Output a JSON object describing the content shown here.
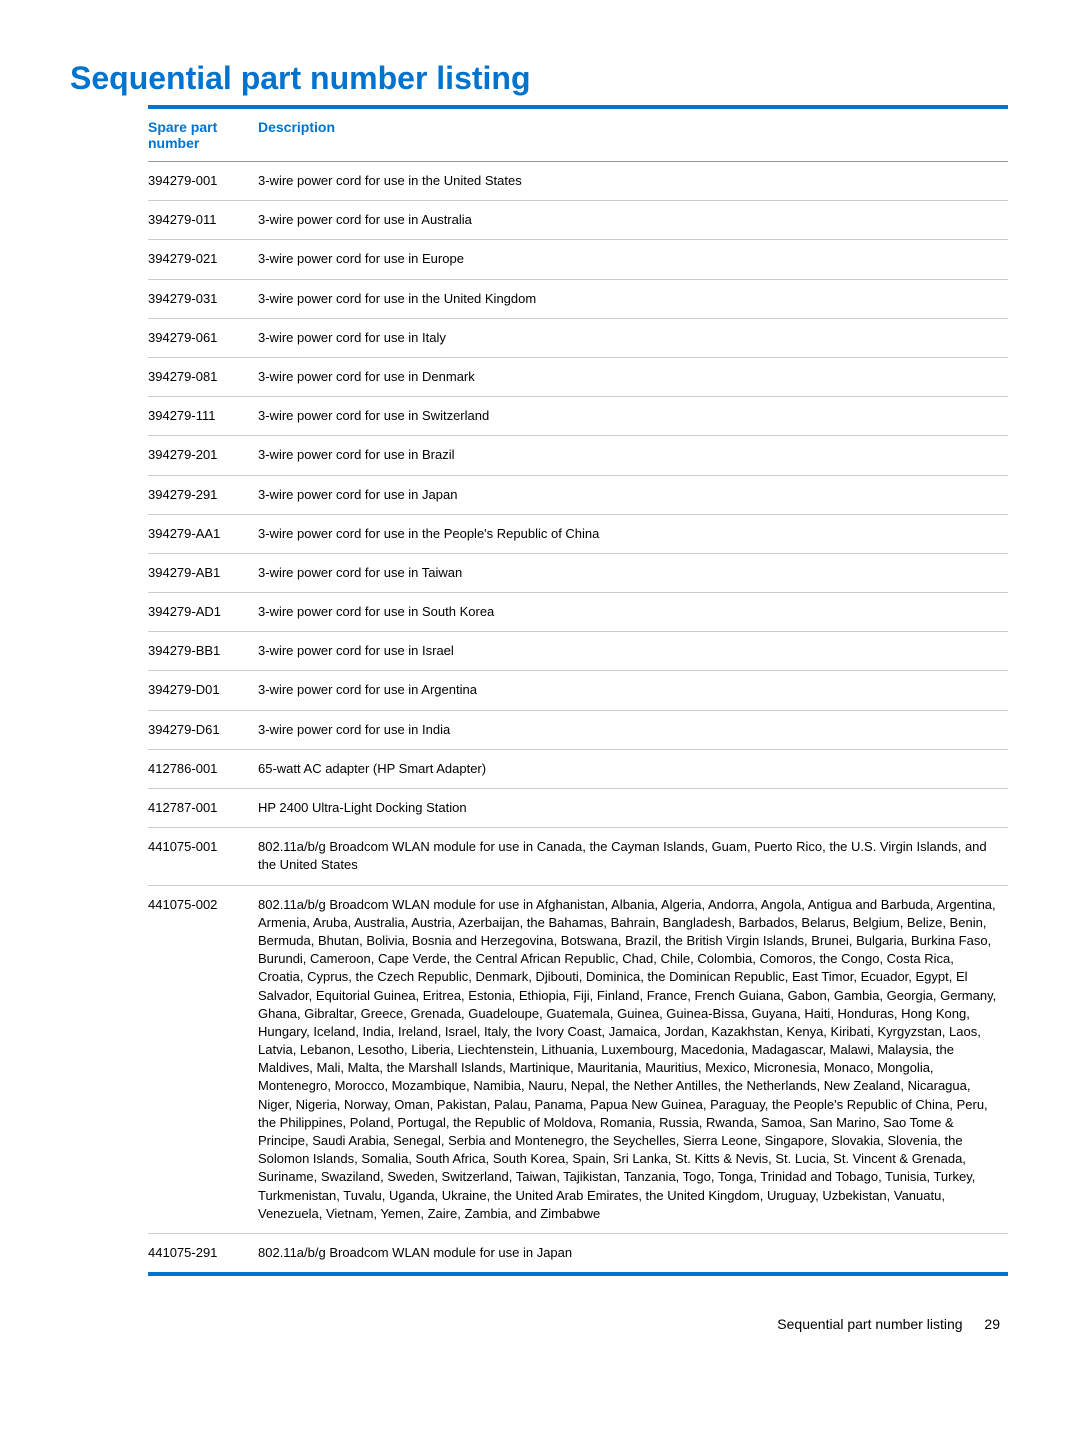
{
  "title": "Sequential part number listing",
  "columns": {
    "part_number": "Spare part number",
    "description": "Description"
  },
  "rows": [
    {
      "pn": "394279-001",
      "desc": "3-wire power cord for use in the United States"
    },
    {
      "pn": "394279-011",
      "desc": "3-wire power cord for use in Australia"
    },
    {
      "pn": "394279-021",
      "desc": "3-wire power cord for use in Europe"
    },
    {
      "pn": "394279-031",
      "desc": "3-wire power cord for use in the United Kingdom"
    },
    {
      "pn": "394279-061",
      "desc": "3-wire power cord for use in Italy"
    },
    {
      "pn": "394279-081",
      "desc": "3-wire power cord for use in Denmark"
    },
    {
      "pn": "394279-111",
      "desc": "3-wire power cord for use in Switzerland"
    },
    {
      "pn": "394279-201",
      "desc": "3-wire power cord for use in Brazil"
    },
    {
      "pn": "394279-291",
      "desc": "3-wire power cord for use in Japan"
    },
    {
      "pn": "394279-AA1",
      "desc": "3-wire power cord for use in the People's Republic of China"
    },
    {
      "pn": "394279-AB1",
      "desc": "3-wire power cord for use in Taiwan"
    },
    {
      "pn": "394279-AD1",
      "desc": "3-wire power cord for use in South Korea"
    },
    {
      "pn": "394279-BB1",
      "desc": "3-wire power cord for use in Israel"
    },
    {
      "pn": "394279-D01",
      "desc": "3-wire power cord for use in Argentina"
    },
    {
      "pn": "394279-D61",
      "desc": "3-wire power cord for use in India"
    },
    {
      "pn": "412786-001",
      "desc": "65-watt AC adapter (HP Smart Adapter)"
    },
    {
      "pn": "412787-001",
      "desc": "HP 2400 Ultra-Light Docking Station"
    },
    {
      "pn": "441075-001",
      "desc": "802.11a/b/g Broadcom WLAN module for use in Canada, the Cayman Islands, Guam, Puerto Rico, the U.S. Virgin Islands, and the United States"
    },
    {
      "pn": "441075-002",
      "desc": "802.11a/b/g Broadcom WLAN module for use in Afghanistan, Albania, Algeria, Andorra, Angola, Antigua and Barbuda, Argentina, Armenia, Aruba, Australia, Austria, Azerbaijan, the Bahamas, Bahrain, Bangladesh, Barbados, Belarus, Belgium, Belize, Benin, Bermuda, Bhutan, Bolivia, Bosnia and Herzegovina, Botswana, Brazil, the British Virgin Islands, Brunei, Bulgaria, Burkina Faso, Burundi, Cameroon, Cape Verde, the Central African Republic, Chad, Chile, Colombia, Comoros, the Congo, Costa Rica, Croatia, Cyprus, the Czech Republic, Denmark, Djibouti, Dominica, the Dominican Republic, East Timor, Ecuador, Egypt, El Salvador, Equitorial Guinea, Eritrea, Estonia, Ethiopia, Fiji, Finland, France, French Guiana, Gabon, Gambia, Georgia, Germany, Ghana, Gibraltar, Greece, Grenada, Guadeloupe, Guatemala, Guinea, Guinea-Bissa, Guyana, Haiti, Honduras, Hong Kong, Hungary, Iceland, India, Ireland, Israel, Italy, the Ivory Coast, Jamaica, Jordan, Kazakhstan, Kenya, Kiribati, Kyrgyzstan, Laos, Latvia, Lebanon, Lesotho, Liberia, Liechtenstein, Lithuania, Luxembourg, Macedonia, Madagascar, Malawi, Malaysia, the Maldives, Mali, Malta, the Marshall Islands, Martinique, Mauritania, Mauritius, Mexico, Micronesia, Monaco, Mongolia, Montenegro, Morocco, Mozambique, Namibia, Nauru, Nepal, the Nether Antilles, the Netherlands, New Zealand, Nicaragua, Niger, Nigeria, Norway, Oman, Pakistan, Palau, Panama, Papua New Guinea, Paraguay, the People's Republic of China, Peru, the Philippines, Poland, Portugal, the Republic of Moldova, Romania, Russia, Rwanda, Samoa, San Marino, Sao Tome & Principe, Saudi Arabia, Senegal, Serbia and Montenegro, the Seychelles, Sierra Leone, Singapore, Slovakia, Slovenia, the Solomon Islands, Somalia, South Africa, South Korea, Spain, Sri Lanka, St. Kitts & Nevis, St. Lucia, St. Vincent & Grenada, Suriname, Swaziland, Sweden, Switzerland, Taiwan, Tajikistan, Tanzania, Togo, Tonga, Trinidad and Tobago, Tunisia, Turkey, Turkmenistan, Tuvalu, Uganda, Ukraine, the United Arab Emirates, the United Kingdom, Uruguay, Uzbekistan, Vanuatu, Venezuela, Vietnam, Yemen, Zaire, Zambia, and Zimbabwe"
    },
    {
      "pn": "441075-291",
      "desc": "802.11a/b/g Broadcom WLAN module for use in Japan"
    }
  ],
  "footer": {
    "text": "Sequential part number listing",
    "page": "29"
  },
  "styling": {
    "accent_color": "#0073cf",
    "text_color": "#000000",
    "border_color": "#cccccc",
    "title_fontsize": 32,
    "header_fontsize": 14,
    "cell_fontsize": 13,
    "footer_fontsize": 14
  }
}
